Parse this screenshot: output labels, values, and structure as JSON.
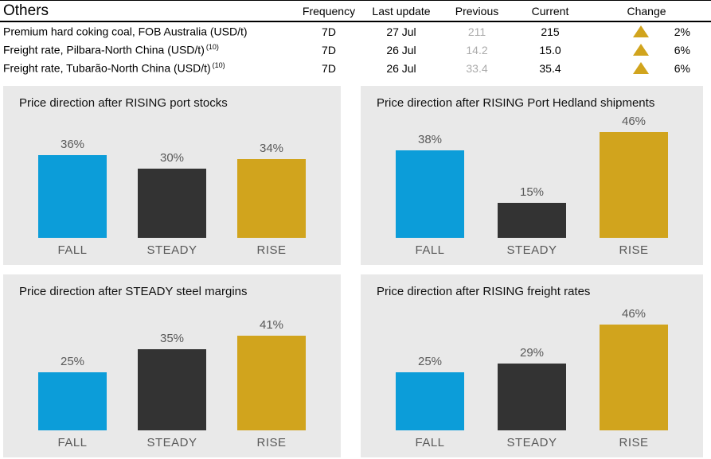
{
  "table": {
    "title": "Others",
    "columns": [
      "Frequency",
      "Last update",
      "Previous",
      "Current",
      "Change"
    ],
    "rows": [
      {
        "label": "Premium hard coking coal, FOB Australia (USD/t)",
        "superscript": "",
        "frequency": "7D",
        "last_update": "27 Jul",
        "previous": "211",
        "current": "215",
        "change": "2%",
        "direction": "up"
      },
      {
        "label": "Freight rate, Pilbara-North China (USD/t)",
        "superscript": "(10)",
        "frequency": "7D",
        "last_update": "26 Jul",
        "previous": "14.2",
        "current": "15.0",
        "change": "6%",
        "direction": "up"
      },
      {
        "label": "Freight rate, Tubarão-North China (USD/t)",
        "superscript": "(10)",
        "frequency": "7D",
        "last_update": "26 Jul",
        "previous": "33.4",
        "current": "35.4",
        "change": "6%",
        "direction": "up"
      }
    ]
  },
  "colors": {
    "fall_bar": "#0C9DD9",
    "steady_bar": "#333333",
    "rise_bar": "#D1A41D",
    "change_up_triangle": "#D1A41D",
    "panel_background": "#E9E9E9",
    "previous_text": "#ABABAB",
    "chart_label_text": "#595959"
  },
  "chart_data": [
    {
      "type": "bar",
      "title": "Price direction after RISING port stocks",
      "categories": [
        "FALL",
        "STEADY",
        "RISE"
      ],
      "values": [
        36,
        30,
        34
      ],
      "labels": [
        "36%",
        "30%",
        "34%"
      ],
      "ylim": [
        0,
        50
      ],
      "grid": false,
      "legend": false
    },
    {
      "type": "bar",
      "title": "Price direction after RISING Port Hedland shipments",
      "categories": [
        "FALL",
        "STEADY",
        "RISE"
      ],
      "values": [
        38,
        15,
        46
      ],
      "labels": [
        "38%",
        "15%",
        "46%"
      ],
      "ylim": [
        0,
        50
      ],
      "grid": false,
      "legend": false
    },
    {
      "type": "bar",
      "title": "Price direction after STEADY steel margins",
      "categories": [
        "FALL",
        "STEADY",
        "RISE"
      ],
      "values": [
        25,
        35,
        41
      ],
      "labels": [
        "25%",
        "35%",
        "41%"
      ],
      "ylim": [
        0,
        50
      ],
      "grid": false,
      "legend": false
    },
    {
      "type": "bar",
      "title": "Price direction after RISING freight rates",
      "categories": [
        "FALL",
        "STEADY",
        "RISE"
      ],
      "values": [
        25,
        29,
        46
      ],
      "labels": [
        "25%",
        "29%",
        "46%"
      ],
      "ylim": [
        0,
        50
      ],
      "grid": false,
      "legend": false
    }
  ]
}
